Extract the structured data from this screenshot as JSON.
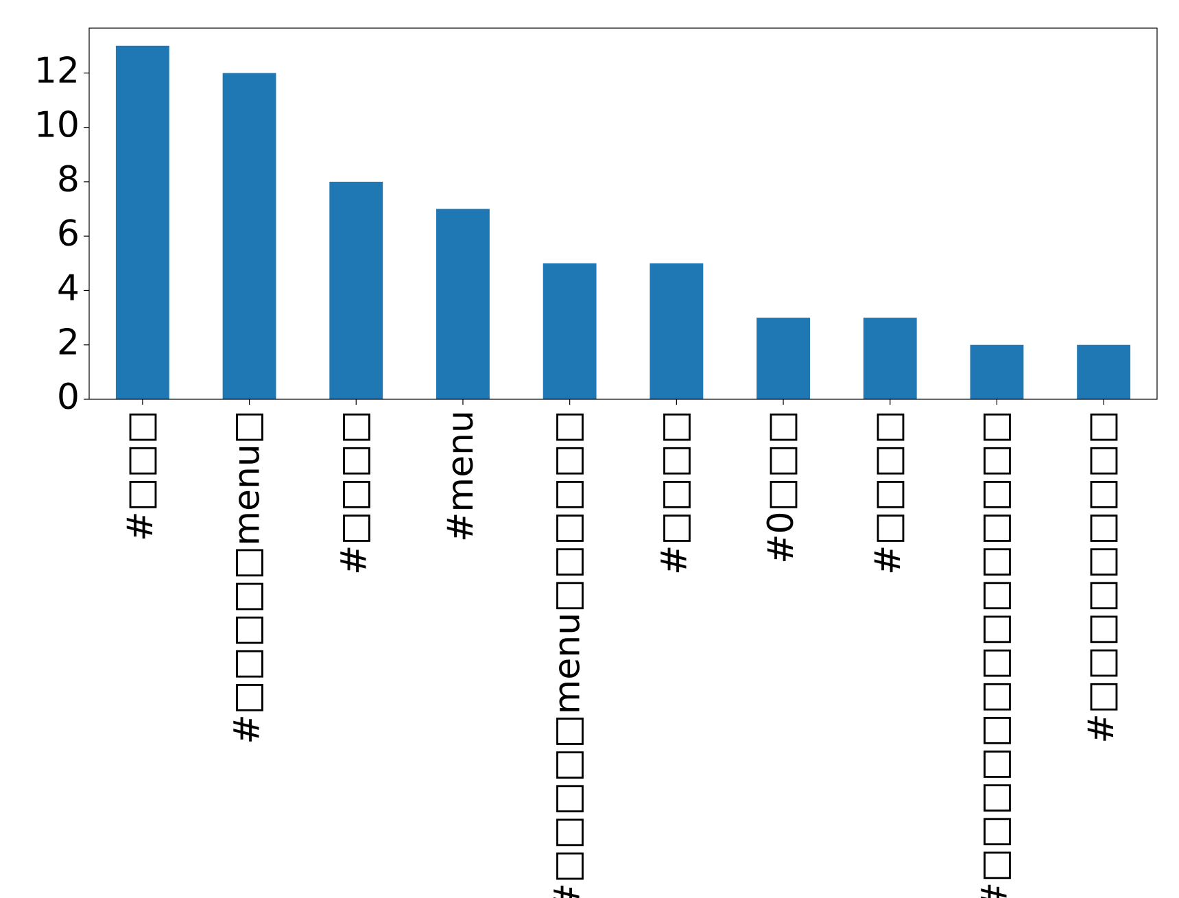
{
  "chart_data": {
    "type": "bar",
    "categories": [
      "#□□□",
      "#□□□□□menu□",
      "#□□□□",
      "#menu",
      "#□□□□□menu□□□□□□",
      "#□□□□",
      "#0□□□",
      "#□□□□",
      "#□□□□□□□□□□□□□□",
      "#□□□□□□□□□"
    ],
    "values": [
      13,
      12,
      8,
      7,
      5,
      5,
      3,
      3,
      2,
      2
    ],
    "color": "#1f77b4",
    "ylim": [
      0,
      13.65
    ],
    "yticks": [
      0,
      2,
      4,
      6,
      8,
      10,
      12
    ],
    "grid": false
  }
}
